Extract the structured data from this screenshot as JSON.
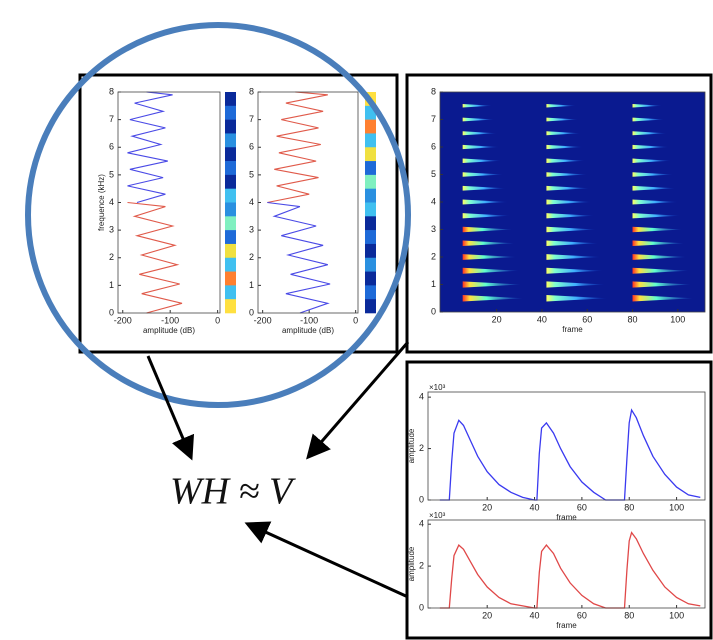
{
  "equation": "WH ≈ V",
  "w_panel": {
    "plots": [
      {
        "ylabel": "frequence (kHz)",
        "xlabel": "amplitude (dB)",
        "xlim": [
          -210,
          5
        ],
        "ylim": [
          0,
          8
        ],
        "xticks": [
          -200,
          -100,
          0
        ],
        "yticks": [
          0,
          1,
          2,
          3,
          4,
          5,
          6,
          7,
          8
        ],
        "series": [
          {
            "color": "#4a4ae6",
            "freq": [
              4,
              4.3,
              4.6,
              4.9,
              5.2,
              5.5,
              5.8,
              6.1,
              6.4,
              6.7,
              7.0,
              7.3,
              7.6,
              7.9,
              8
            ],
            "amp": [
              -170,
              -110,
              -190,
              -115,
              -185,
              -105,
              -190,
              -120,
              -180,
              -110,
              -185,
              -115,
              -175,
              -95,
              -150
            ]
          },
          {
            "color": "#e05a4a",
            "freq": [
              0,
              0.35,
              0.7,
              1.05,
              1.4,
              1.75,
              2.1,
              2.45,
              2.8,
              3.15,
              3.5,
              3.85,
              4
            ],
            "amp": [
              -150,
              -75,
              -160,
              -80,
              -165,
              -85,
              -160,
              -90,
              -170,
              -95,
              -175,
              -110,
              -190
            ]
          }
        ]
      },
      {
        "xlabel": "amplitude (dB)",
        "xlim": [
          -210,
          5
        ],
        "ylim": [
          0,
          8
        ],
        "xticks": [
          -200,
          -100,
          0
        ],
        "yticks": [
          0,
          1,
          2,
          3,
          4,
          5,
          6,
          7,
          8
        ],
        "series": [
          {
            "color": "#e05a4a",
            "freq": [
              4,
              4.3,
              4.6,
              4.9,
              5.2,
              5.5,
              5.8,
              6.1,
              6.4,
              6.7,
              7.0,
              7.3,
              7.6,
              7.9,
              8
            ],
            "amp": [
              -190,
              -100,
              -170,
              -80,
              -175,
              -85,
              -165,
              -75,
              -170,
              -80,
              -160,
              -70,
              -150,
              -60,
              -130
            ]
          },
          {
            "color": "#4a4ae6",
            "freq": [
              0,
              0.35,
              0.7,
              1.05,
              1.4,
              1.75,
              2.1,
              2.45,
              2.8,
              3.15,
              3.5,
              3.85,
              4
            ],
            "amp": [
              -120,
              -60,
              -150,
              -55,
              -140,
              -60,
              -145,
              -70,
              -160,
              -85,
              -175,
              -120,
              -190
            ]
          }
        ]
      }
    ]
  },
  "v_panel": {
    "xlabel": "frame",
    "xlim": [
      -5,
      112
    ],
    "ylim": [
      0,
      8
    ],
    "xticks": [
      20,
      40,
      60,
      80,
      100
    ],
    "yticks": [
      0,
      1,
      2,
      3,
      4,
      5,
      6,
      7,
      8
    ],
    "onsets": [
      5,
      42,
      80
    ],
    "partials_khz": [
      0.5,
      1,
      1.5,
      2,
      2.5,
      3,
      3.5,
      4,
      4.5,
      5,
      5.5,
      6,
      6.5,
      7,
      7.5
    ]
  },
  "h_panel": {
    "plots": [
      {
        "ylabel": "amplitude",
        "xlabel": "frame",
        "scale_label": "×10³",
        "xlim": [
          -5,
          112
        ],
        "ylim": [
          0,
          4.2
        ],
        "xticks": [
          20,
          40,
          60,
          80,
          100
        ],
        "yticks": [
          0,
          2,
          4
        ],
        "color": "#3a3af0",
        "x": [
          0,
          2,
          4,
          5,
          6,
          8,
          10,
          13,
          16,
          20,
          25,
          30,
          35,
          40,
          41,
          42,
          43,
          45,
          48,
          51,
          55,
          60,
          65,
          70,
          77,
          78,
          79,
          80,
          81,
          83,
          86,
          90,
          95,
          100,
          105,
          110
        ],
        "values": [
          0,
          0,
          0,
          1.5,
          2.6,
          3.1,
          2.9,
          2.3,
          1.7,
          1.1,
          0.6,
          0.3,
          0.1,
          0,
          0,
          1.8,
          2.8,
          3.0,
          2.6,
          2.0,
          1.3,
          0.7,
          0.3,
          0,
          0,
          0,
          1.6,
          3.0,
          3.5,
          3.2,
          2.5,
          1.7,
          1.0,
          0.5,
          0.2,
          0.1
        ]
      },
      {
        "ylabel": "amplitude",
        "xlabel": "frame",
        "scale_label": "×10³",
        "xlim": [
          -5,
          112
        ],
        "ylim": [
          0,
          4.2
        ],
        "xticks": [
          20,
          40,
          60,
          80,
          100
        ],
        "yticks": [
          0,
          2,
          4
        ],
        "color": "#e04848",
        "x": [
          0,
          2,
          4,
          5,
          6,
          8,
          10,
          13,
          16,
          20,
          25,
          30,
          35,
          40,
          41,
          42,
          43,
          45,
          48,
          51,
          55,
          60,
          65,
          70,
          77,
          78,
          79,
          80,
          81,
          83,
          86,
          90,
          95,
          100,
          105,
          110
        ],
        "values": [
          0,
          0,
          0,
          1.4,
          2.5,
          3.0,
          2.8,
          2.2,
          1.6,
          1.0,
          0.5,
          0.2,
          0.1,
          0,
          0,
          1.7,
          2.7,
          3.0,
          2.6,
          1.9,
          1.2,
          0.6,
          0.2,
          0,
          0,
          0,
          1.8,
          3.2,
          3.6,
          3.3,
          2.6,
          1.8,
          1.0,
          0.5,
          0.2,
          0.1
        ]
      }
    ]
  }
}
